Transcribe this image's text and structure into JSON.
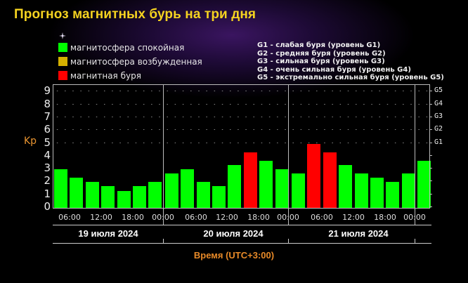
{
  "title": "Прогноз магнитных бурь на три дня",
  "legend": [
    {
      "label": "магнитосфера спокойная",
      "color": "#00ff00"
    },
    {
      "label": "магнитосфера возбужденная",
      "color": "#d4b000"
    },
    {
      "label": "магнитная буря",
      "color": "#ff0000"
    }
  ],
  "g_levels": [
    "G1 - слабая буря (уровень G1)",
    "G2 - средняя буря (уровень G2)",
    "G3 - сильная буря (уровень G3)",
    "G4 - очень сильная буря (уровень G4)",
    "G5 - экстремально сильная буря (уровень G5)"
  ],
  "axis": {
    "ylabel": "Kp",
    "xlabel": "Время (UTC+3:00)",
    "yticks": [
      "0",
      "1",
      "2",
      "3",
      "4",
      "5",
      "6",
      "7",
      "8",
      "9"
    ],
    "gticks": [
      "G1",
      "G2",
      "G3",
      "G4",
      "G5"
    ],
    "xticks": [
      "06:00",
      "12:00",
      "18:00",
      "00:00",
      "06:00",
      "12:00",
      "18:00",
      "00:00",
      "06:00",
      "12:00",
      "18:00",
      "00:00"
    ],
    "days": [
      "19 июля 2024",
      "20 июля 2024",
      "21 июля 2024"
    ]
  },
  "chart_data": {
    "type": "bar",
    "title": "Прогноз магнитных бурь на три дня",
    "xlabel": "Время (UTC+3:00)",
    "ylabel": "Kp",
    "ylim": [
      0,
      9
    ],
    "grid": true,
    "categories": [
      "19.07 03:00",
      "19.07 06:00",
      "19.07 09:00",
      "19.07 12:00",
      "19.07 15:00",
      "19.07 18:00",
      "19.07 21:00",
      "20.07 00:00",
      "20.07 03:00",
      "20.07 06:00",
      "20.07 09:00",
      "20.07 12:00",
      "20.07 15:00",
      "20.07 18:00",
      "20.07 21:00",
      "21.07 00:00",
      "21.07 03:00",
      "21.07 06:00",
      "21.07 09:00",
      "21.07 12:00",
      "21.07 15:00",
      "21.07 18:00",
      "21.07 21:00",
      "22.07 00:00"
    ],
    "values": [
      3.0,
      2.33,
      2.0,
      1.67,
      1.33,
      1.67,
      2.0,
      2.67,
      3.0,
      2.0,
      1.67,
      3.33,
      4.33,
      3.67,
      3.0,
      2.67,
      5.0,
      4.33,
      3.33,
      2.67,
      2.33,
      2.0,
      2.67,
      3.67
    ],
    "colors": [
      "green",
      "green",
      "green",
      "green",
      "green",
      "green",
      "green",
      "green",
      "green",
      "green",
      "green",
      "green",
      "red",
      "green",
      "green",
      "green",
      "red",
      "red",
      "green",
      "green",
      "green",
      "green",
      "green",
      "green"
    ],
    "legend": [
      "магнитосфера спокойная",
      "магнитосфера возбужденная",
      "магнитная буря"
    ],
    "secondary_yaxis": {
      "G1": 5,
      "G2": 6,
      "G3": 7,
      "G4": 8,
      "G5": 9
    }
  },
  "colors": {
    "green": "#00ff00",
    "red": "#ff0000",
    "yellow": "#d4b000"
  }
}
